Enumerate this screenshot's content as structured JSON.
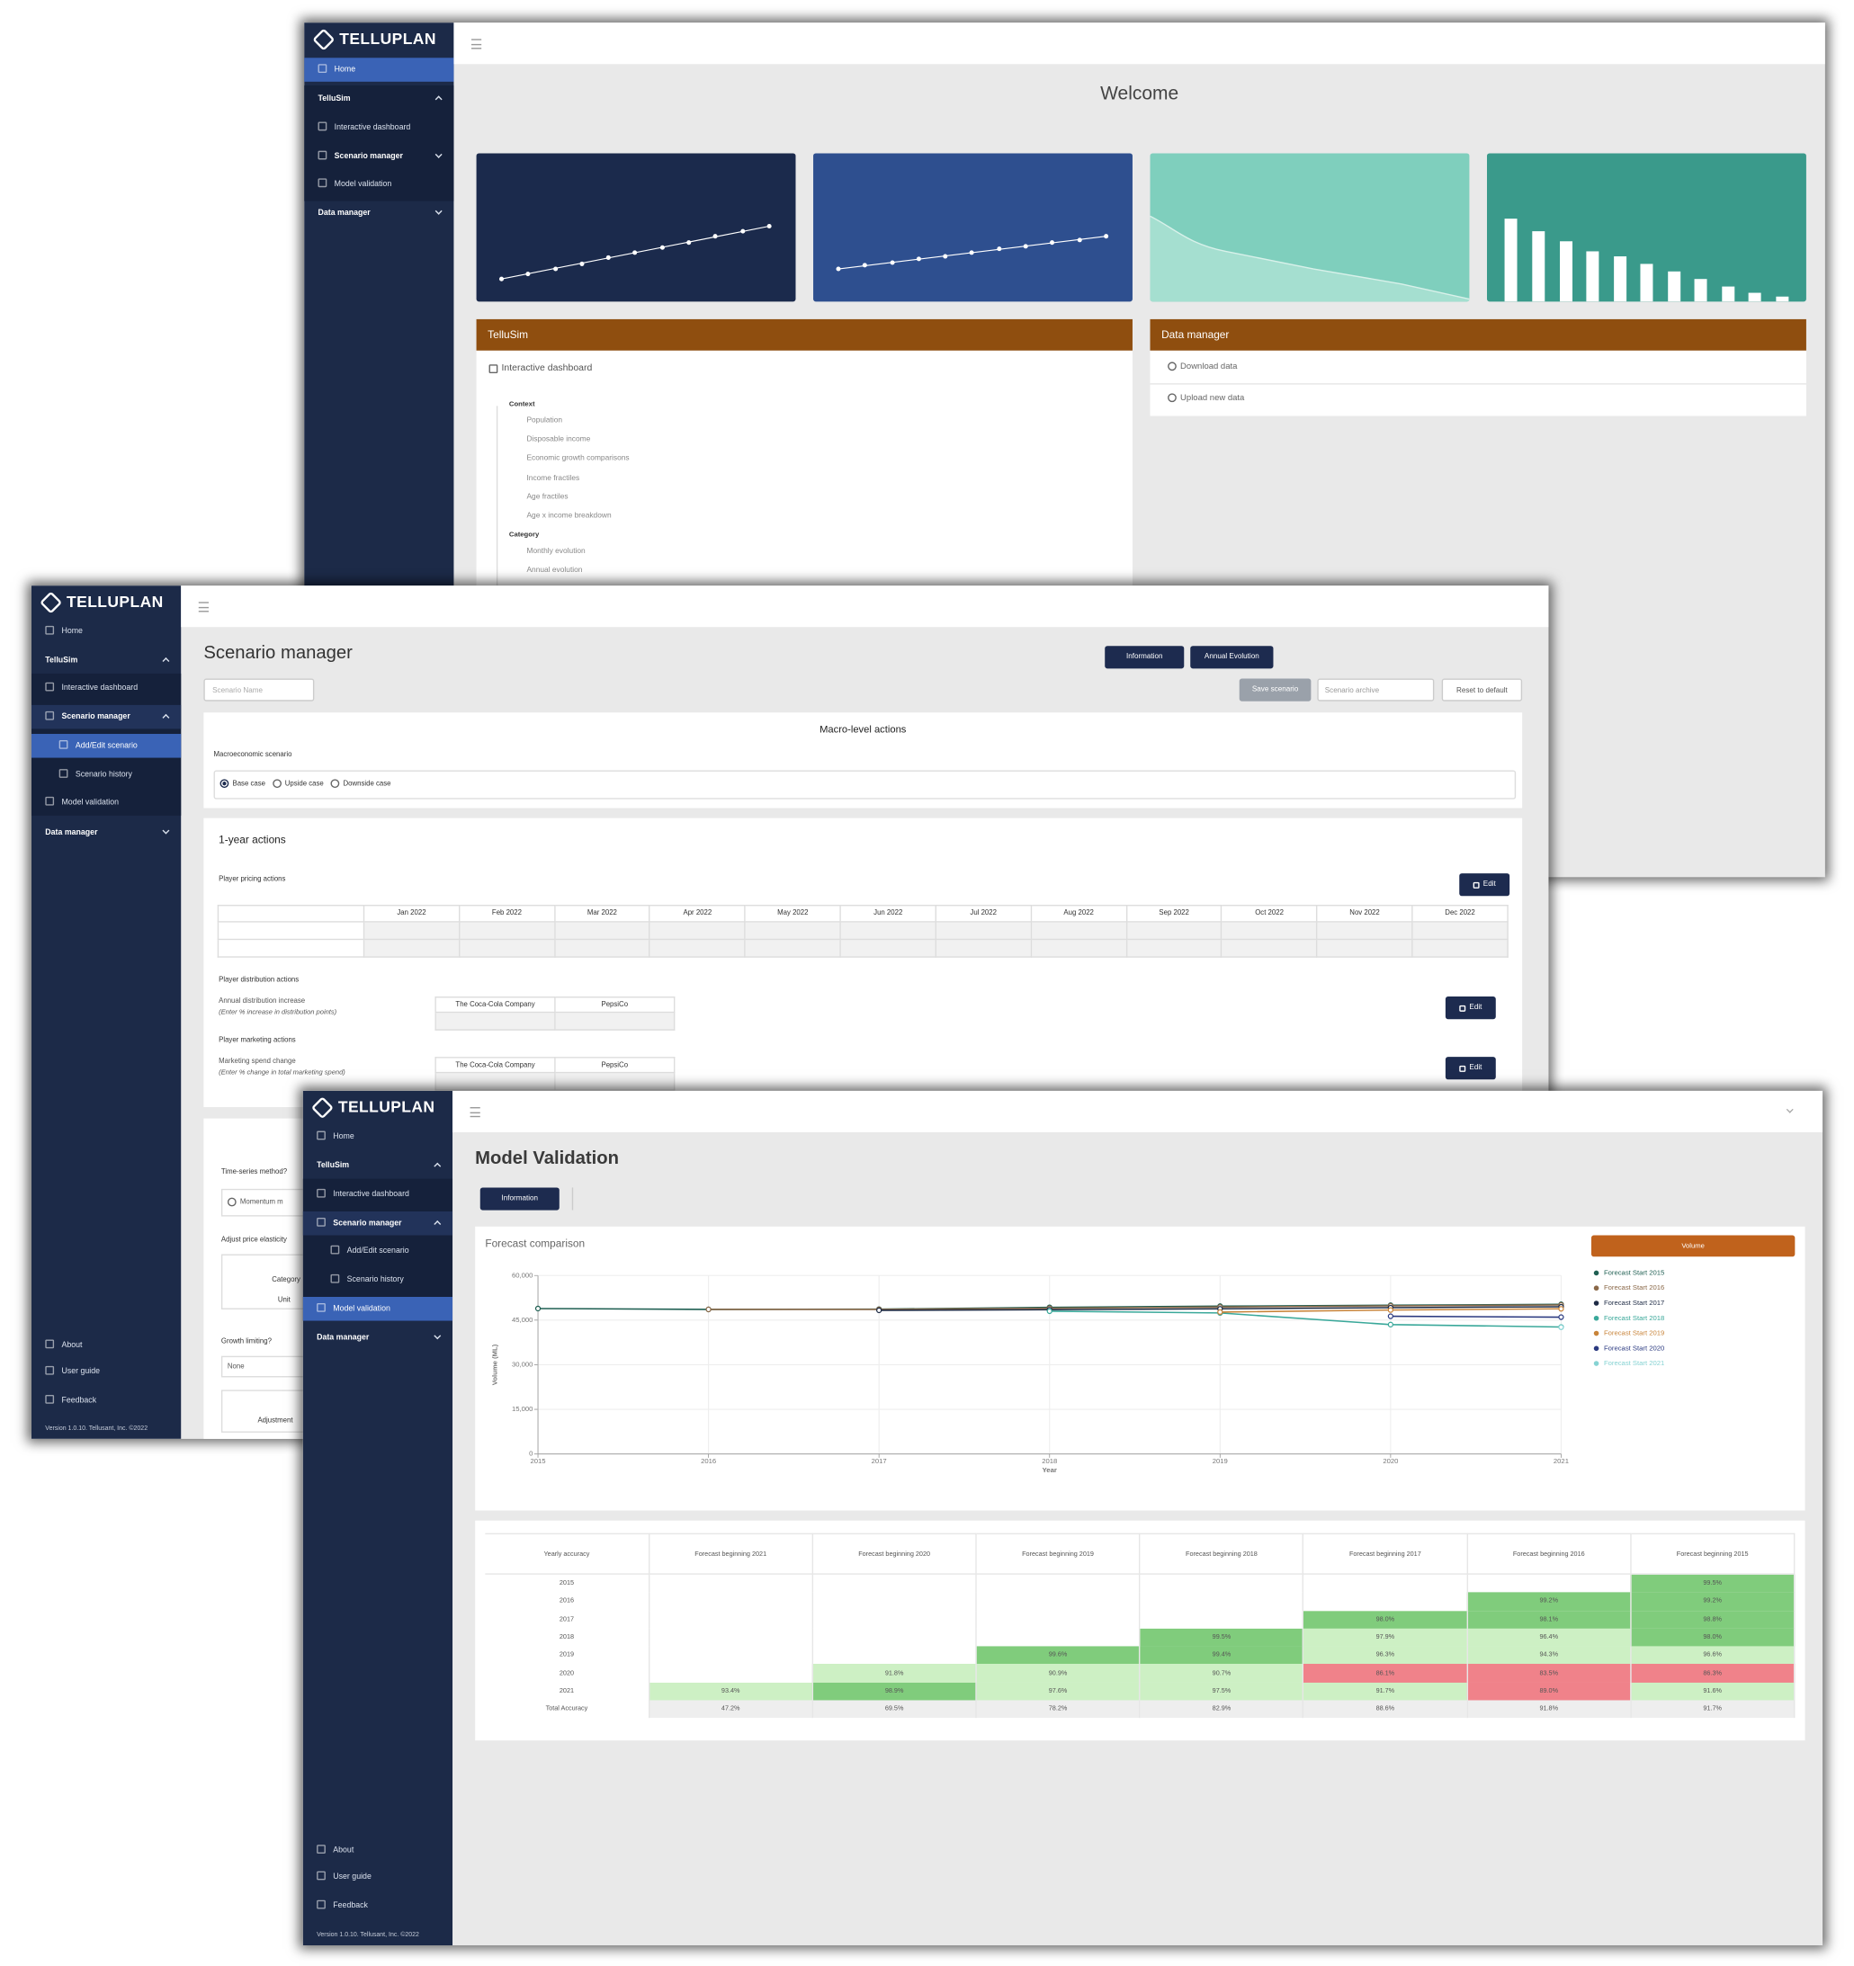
{
  "welcome": {
    "brand": "TELLUPLAN",
    "nav": {
      "home": "Home",
      "tellusim": "TelluSim",
      "dashboard": "Interactive dashboard",
      "scenario": "Scenario manager",
      "validation": "Model validation",
      "data": "Data manager"
    },
    "title": "Welcome",
    "tellusim_panel": {
      "title": "TelluSim",
      "section": "Interactive dashboard",
      "context": "Context",
      "context_items": [
        "Population",
        "Disposable income",
        "Economic growth comparisons",
        "Income fractiles",
        "Age fractiles",
        "Age x income breakdown"
      ],
      "category": "Category",
      "category_items": [
        "Monthly evolution",
        "Annual evolution"
      ]
    },
    "data_panel": {
      "title": "Data manager",
      "items": [
        "Download data",
        "Upload new data"
      ]
    }
  },
  "scenario": {
    "brand": "TELLUPLAN",
    "nav": {
      "home": "Home",
      "tellusim": "TelluSim",
      "dashboard": "Interactive dashboard",
      "scenario": "Scenario manager",
      "add_edit": "Add/Edit scenario",
      "history": "Scenario history",
      "validation": "Model validation",
      "data": "Data manager",
      "about": "About",
      "guide": "User guide",
      "feedback": "Feedback",
      "version": "Version 1.0.10. Tellusant, Inc. ©2022"
    },
    "title": "Scenario manager",
    "buttons": {
      "information": "Information",
      "annual": "Annual Evolution",
      "save": "Save scenario",
      "archive": "Scenario archive",
      "reset": "Reset to default"
    },
    "name_placeholder": "Scenario Name",
    "macro": {
      "title": "Macro-level actions",
      "label": "Macroeconomic scenario",
      "options": [
        "Base case",
        "Upside case",
        "Downside case"
      ]
    },
    "one_year": {
      "title": "1-year actions",
      "pricing": "Player pricing actions",
      "edit": "Edit",
      "months": [
        "Jan 2022",
        "Feb 2022",
        "Mar 2022",
        "Apr 2022",
        "May 2022",
        "Jun 2022",
        "Jul 2022",
        "Aug 2022",
        "Sep 2022",
        "Oct 2022",
        "Nov 2022",
        "Dec 2022"
      ],
      "distribution": "Player distribution actions",
      "dist_label": "Annual distribution increase",
      "dist_note": "(Enter % increase in distribution points)",
      "dist_players": [
        "The Coca-Cola Company",
        "PepsiCo"
      ],
      "dist_edit": "Edit",
      "marketing": "Player marketing actions",
      "mkt_label": "Marketing spend change",
      "mkt_note": "(Enter % change in total marketing spend)",
      "mkt_players": [
        "The Coca-Cola Company",
        "PepsiCo"
      ],
      "mkt_edit": "Edit"
    },
    "long_term": {
      "method": "Time-series method?",
      "method_option": "Momentum m",
      "elasticity": "Adjust price elasticity",
      "rows": [
        "Category",
        "Unit"
      ],
      "growth": "Growth limiting?",
      "growth_value": "None",
      "adjustment": "Adjustment"
    }
  },
  "validation": {
    "brand": "TELLUPLAN",
    "nav": {
      "home": "Home",
      "tellusim": "TelluSim",
      "dashboard": "Interactive dashboard",
      "scenario": "Scenario manager",
      "add_edit": "Add/Edit scenario",
      "history": "Scenario history",
      "validation": "Model validation",
      "data": "Data manager",
      "about": "About",
      "guide": "User guide",
      "feedback": "Feedback",
      "version": "Version 1.0.10. Tellusant, Inc. ©2022"
    },
    "title": "Model Validation",
    "information": "Information"
  },
  "chart_data": {
    "type": "line",
    "title": "Forecast comparison",
    "x_label": "Year",
    "y_label": "Volume (ML)",
    "legend_title": "Volume",
    "legend": "right",
    "grid": true,
    "x": [
      2015,
      2016,
      2017,
      2018,
      2019,
      2020,
      2021
    ],
    "xlim": [
      2015,
      2021
    ],
    "xticks": [
      2015,
      2016,
      2017,
      2018,
      2019,
      2020,
      2021
    ],
    "ylim": [
      0,
      60000
    ],
    "yticks": [
      0,
      {
        "value": 15000,
        "label": "15,000"
      },
      {
        "value": 30000,
        "label": "30,000"
      },
      {
        "value": 45000,
        "label": "45,000"
      },
      {
        "value": 60000,
        "label": "60,000"
      }
    ],
    "series": [
      {
        "name": "Forecast Start 2015",
        "color": "#1f5f52",
        "values": [
          48900,
          48600,
          48700,
          49300,
          49700,
          50000,
          50300
        ]
      },
      {
        "name": "Forecast Start 2016",
        "color": "#8a6848",
        "values": [
          null,
          48600,
          48600,
          49000,
          49400,
          49800,
          50100
        ]
      },
      {
        "name": "Forecast Start 2017",
        "color": "#1d2a44",
        "values": [
          null,
          null,
          48300,
          48500,
          48800,
          49200,
          49500
        ]
      },
      {
        "name": "Forecast Start 2018",
        "color": "#3aa89a",
        "values": [
          null,
          null,
          null,
          48000,
          47400,
          43500,
          42700
        ]
      },
      {
        "name": "Forecast Start 2019",
        "color": "#c8843a",
        "values": [
          null,
          null,
          null,
          null,
          47700,
          48400,
          48800
        ]
      },
      {
        "name": "Forecast Start 2020",
        "color": "#2b3a80",
        "values": [
          null,
          null,
          null,
          null,
          null,
          46300,
          46000
        ]
      },
      {
        "name": "Forecast Start 2021",
        "color": "#86d3d3",
        "values": [
          null,
          null,
          null,
          null,
          null,
          null,
          42600
        ]
      }
    ]
  },
  "accuracy_table": {
    "header": [
      "Yearly accuracy",
      "Forecast beginning 2021",
      "Forecast beginning 2020",
      "Forecast beginning 2019",
      "Forecast beginning 2018",
      "Forecast beginning 2017",
      "Forecast beginning 2016",
      "Forecast beginning 2015"
    ],
    "rows": [
      {
        "label": "2015",
        "cells": [
          null,
          null,
          null,
          null,
          null,
          null,
          "99.5%"
        ]
      },
      {
        "label": "2016",
        "cells": [
          null,
          null,
          null,
          null,
          null,
          "99.2%",
          "99.2%"
        ]
      },
      {
        "label": "2017",
        "cells": [
          null,
          null,
          null,
          null,
          "98.0%",
          "98.1%",
          "98.8%"
        ]
      },
      {
        "label": "2018",
        "cells": [
          null,
          null,
          null,
          "99.5%",
          "97.9%",
          "96.4%",
          "98.0%"
        ]
      },
      {
        "label": "2019",
        "cells": [
          null,
          null,
          "99.6%",
          "99.4%",
          "96.3%",
          "94.3%",
          "96.6%"
        ]
      },
      {
        "label": "2020",
        "cells": [
          null,
          "91.8%",
          "90.9%",
          "90.7%",
          "86.1%",
          "83.5%",
          "86.3%"
        ]
      },
      {
        "label": "2021",
        "cells": [
          "93.4%",
          "98.9%",
          "97.6%",
          "97.5%",
          "91.7%",
          "89.0%",
          "91.6%"
        ]
      },
      {
        "label": "Total Accuracy",
        "cells": [
          "47.2%",
          "69.5%",
          "78.2%",
          "82.9%",
          "88.6%",
          "91.8%",
          "91.7%"
        ]
      }
    ]
  }
}
